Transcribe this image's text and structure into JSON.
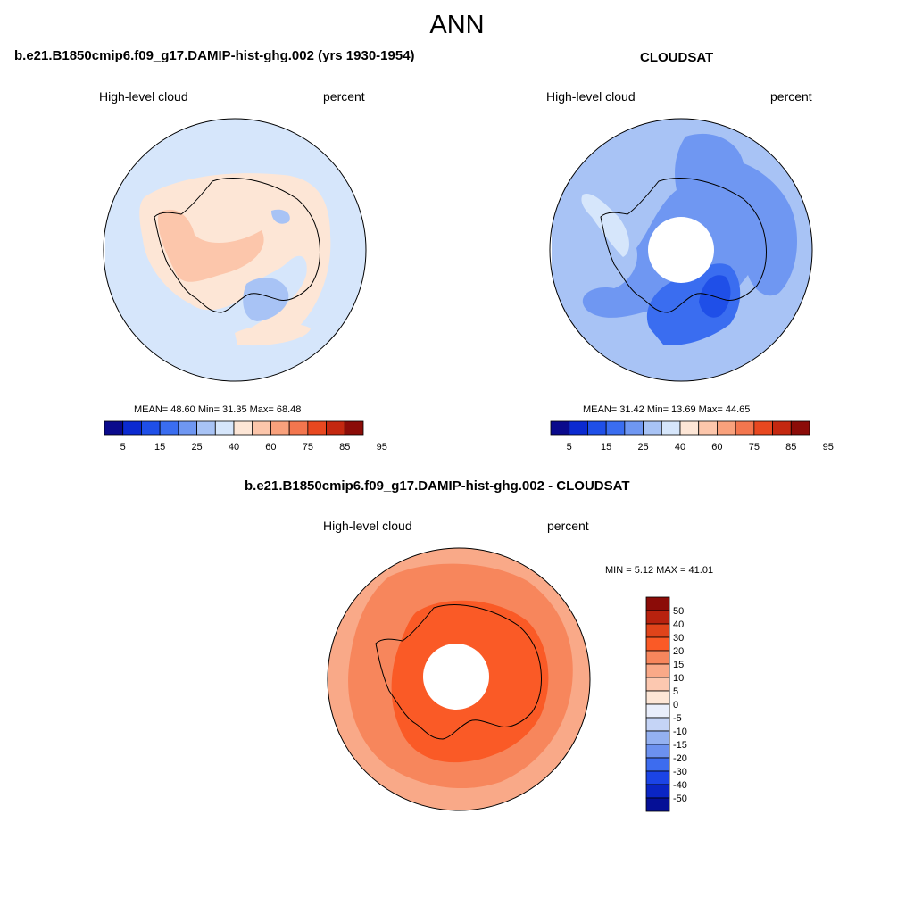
{
  "season": "ANN",
  "panels": [
    {
      "title": "b.e21.B1850cmip6.f09_g17.DAMIP-hist-ghg.002 (yrs 1930-1954)",
      "left_label": "High-level cloud",
      "right_label": "percent",
      "stats": "MEAN=  48.60  Min=  31.35  Max=  68.48"
    },
    {
      "title": "CLOUDSAT",
      "left_label": "High-level cloud",
      "right_label": "percent",
      "stats": "MEAN=  31.42  Min=  13.69  Max=  44.65"
    },
    {
      "title": "b.e21.B1850cmip6.f09_g17.DAMIP-hist-ghg.002 - CLOUDSAT",
      "left_label": "High-level cloud",
      "right_label": "percent",
      "stats": "MIN =   5.12 MAX =  41.01"
    }
  ],
  "colorbar_main": {
    "ticks": [
      "5",
      "15",
      "25",
      "40",
      "60",
      "75",
      "85",
      "95"
    ],
    "colors": [
      "#0a0a8c",
      "#0b2ad0",
      "#1f4fe8",
      "#3a6df0",
      "#6f97f2",
      "#a8c3f5",
      "#d6e6fb",
      "#fde6d6",
      "#fcc6ab",
      "#f9a17c",
      "#f3764e",
      "#e84820",
      "#c42810",
      "#8b0c08"
    ]
  },
  "colorbar_diff": {
    "ticks": [
      "50",
      "40",
      "30",
      "20",
      "15",
      "10",
      "5",
      "0",
      "-5",
      "-10",
      "-15",
      "-20",
      "-30",
      "-40",
      "-50"
    ],
    "colors": [
      "#8b0c08",
      "#b8220e",
      "#e0441a",
      "#fa5a26",
      "#f7865c",
      "#f9a988",
      "#fcc8b0",
      "#fde6d6",
      "#e9eefb",
      "#c5d4f6",
      "#94b1f1",
      "#6c91ef",
      "#3d6cef",
      "#1b44e6",
      "#0a25c4",
      "#050f96"
    ]
  },
  "fill_colors": {
    "ocean_blue": "#d6e6fb",
    "land_peach": "#fde6d6",
    "peach_mid": "#fcc6ab",
    "light_blue": "#a8c3f5",
    "mid_blue": "#6f97f2",
    "strong_blue": "#3a6df0",
    "deep_blue": "#1f4fe8",
    "diff_light": "#f9a988",
    "diff_mid": "#f7865c",
    "diff_strong": "#fa5a26"
  }
}
